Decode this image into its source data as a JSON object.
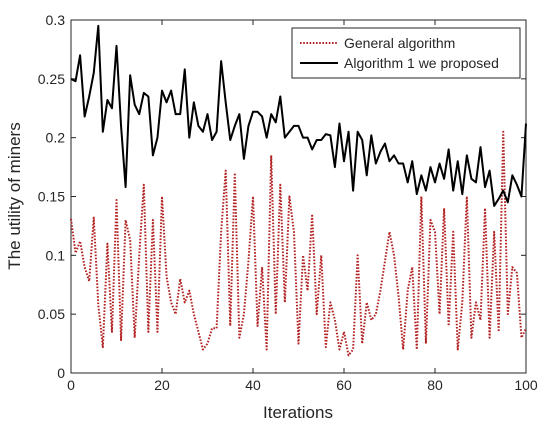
{
  "chart_data": {
    "type": "line",
    "title": "",
    "xlabel": "Iterations",
    "ylabel": "The utility of miners",
    "xlim": [
      0,
      100
    ],
    "ylim": [
      0,
      0.3
    ],
    "xticks": [
      0,
      20,
      40,
      60,
      80,
      100
    ],
    "xtick_labels": [
      "0",
      "20",
      "40",
      "60",
      "80",
      "100"
    ],
    "yticks": [
      0,
      0.05,
      0.1,
      0.15,
      0.2,
      0.25,
      0.3
    ],
    "ytick_labels": [
      "0",
      "0.05",
      "0.1",
      "0.15",
      "0.2",
      "0.25",
      "0.3"
    ],
    "grid": false,
    "legend_position": "top-right",
    "x": [
      0,
      1,
      2,
      3,
      4,
      5,
      6,
      7,
      8,
      9,
      10,
      11,
      12,
      13,
      14,
      15,
      16,
      17,
      18,
      19,
      20,
      21,
      22,
      23,
      24,
      25,
      26,
      27,
      28,
      29,
      30,
      31,
      32,
      33,
      34,
      35,
      36,
      37,
      38,
      39,
      40,
      41,
      42,
      43,
      44,
      45,
      46,
      47,
      48,
      49,
      50,
      51,
      52,
      53,
      54,
      55,
      56,
      57,
      58,
      59,
      60,
      61,
      62,
      63,
      64,
      65,
      66,
      67,
      68,
      69,
      70,
      71,
      72,
      73,
      74,
      75,
      76,
      77,
      78,
      79,
      80,
      81,
      82,
      83,
      84,
      85,
      86,
      87,
      88,
      89,
      90,
      91,
      92,
      93,
      94,
      95,
      96,
      97,
      98,
      99,
      100
    ],
    "series": [
      {
        "name": "General algorithm",
        "color": "#b22222",
        "style": "dotted",
        "values": [
          0.131,
          0.102,
          0.112,
          0.09,
          0.078,
          0.132,
          0.058,
          0.022,
          0.11,
          0.035,
          0.147,
          0.028,
          0.13,
          0.113,
          0.03,
          0.1,
          0.16,
          0.035,
          0.13,
          0.035,
          0.15,
          0.082,
          0.06,
          0.05,
          0.08,
          0.06,
          0.07,
          0.05,
          0.035,
          0.02,
          0.025,
          0.038,
          0.038,
          0.12,
          0.172,
          0.04,
          0.17,
          0.03,
          0.05,
          0.095,
          0.15,
          0.04,
          0.09,
          0.02,
          0.185,
          0.05,
          0.16,
          0.06,
          0.15,
          0.12,
          0.025,
          0.1,
          0.07,
          0.135,
          0.05,
          0.1,
          0.022,
          0.06,
          0.045,
          0.02,
          0.035,
          0.015,
          0.02,
          0.1,
          0.025,
          0.06,
          0.045,
          0.05,
          0.07,
          0.095,
          0.12,
          0.1,
          0.065,
          0.02,
          0.07,
          0.09,
          0.02,
          0.15,
          0.025,
          0.13,
          0.12,
          0.05,
          0.14,
          0.04,
          0.12,
          0.02,
          0.06,
          0.15,
          0.03,
          0.06,
          0.045,
          0.14,
          0.03,
          0.12,
          0.035,
          0.205,
          0.05,
          0.09,
          0.085,
          0.03,
          0.038
        ]
      },
      {
        "name": "Algorithm 1 we proposed",
        "color": "#000000",
        "style": "solid",
        "values": [
          0.25,
          0.248,
          0.27,
          0.218,
          0.235,
          0.255,
          0.295,
          0.205,
          0.232,
          0.225,
          0.278,
          0.21,
          0.158,
          0.253,
          0.228,
          0.22,
          0.238,
          0.235,
          0.185,
          0.2,
          0.24,
          0.23,
          0.24,
          0.22,
          0.22,
          0.258,
          0.2,
          0.23,
          0.21,
          0.205,
          0.22,
          0.198,
          0.205,
          0.265,
          0.23,
          0.198,
          0.21,
          0.22,
          0.182,
          0.21,
          0.222,
          0.222,
          0.218,
          0.2,
          0.22,
          0.213,
          0.235,
          0.2,
          0.205,
          0.21,
          0.21,
          0.2,
          0.2,
          0.19,
          0.198,
          0.198,
          0.203,
          0.202,
          0.175,
          0.212,
          0.18,
          0.205,
          0.155,
          0.205,
          0.198,
          0.168,
          0.202,
          0.178,
          0.188,
          0.195,
          0.18,
          0.185,
          0.178,
          0.178,
          0.162,
          0.18,
          0.152,
          0.168,
          0.155,
          0.175,
          0.162,
          0.178,
          0.165,
          0.19,
          0.155,
          0.18,
          0.152,
          0.185,
          0.165,
          0.162,
          0.192,
          0.158,
          0.172,
          0.142,
          0.148,
          0.155,
          0.145,
          0.168,
          0.16,
          0.15,
          0.212
        ]
      }
    ]
  }
}
